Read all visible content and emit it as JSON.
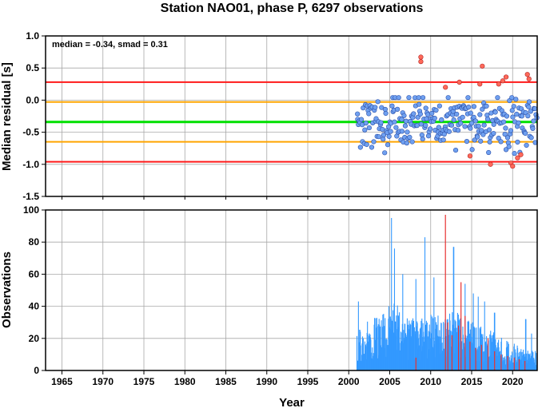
{
  "title": "Station NAO01, phase P, 6297 observations",
  "xlabel": "Year",
  "colors": {
    "median_line": "#00e000",
    "smad_line": "#ffa500",
    "limit_line": "#ff1a1a",
    "point_in": "#6fa0f0",
    "point_out": "#ff6a5a",
    "bar_main": "#3399ff",
    "bar_out": "#e83030",
    "grid": "#a8a8a8"
  },
  "chart_data": [
    {
      "type": "scatter",
      "ylabel": "Median residual [s]",
      "annotation": "median = -0.34, smad = 0.31",
      "xlim": [
        1963,
        2023
      ],
      "ylim": [
        -1.5,
        1.0
      ],
      "yticks": [
        "1.0",
        "0.5",
        "0.0",
        "-0.5",
        "-1.0",
        "-1.5"
      ],
      "ytick_values": [
        1.0,
        0.5,
        0.0,
        -0.5,
        -1.0,
        -1.5
      ],
      "grid": true,
      "hlines": [
        {
          "y": 0.28,
          "kind": "limit"
        },
        {
          "y": -0.03,
          "kind": "smad"
        },
        {
          "y": -0.34,
          "kind": "median"
        },
        {
          "y": -0.65,
          "kind": "smad"
        },
        {
          "y": -0.96,
          "kind": "limit"
        }
      ],
      "points_start": 2001.0,
      "points_end": 2023.0,
      "point_count": 265,
      "cluster": {
        "center": -0.34,
        "spread": 0.42,
        "min": -0.83,
        "max": 0.04
      },
      "outliers": [
        {
          "x": 2008.8,
          "y": 0.67
        },
        {
          "x": 2008.8,
          "y": 0.6
        },
        {
          "x": 2011.8,
          "y": 0.2
        },
        {
          "x": 2013.5,
          "y": 0.28
        },
        {
          "x": 2014.8,
          "y": -0.87
        },
        {
          "x": 2016.3,
          "y": 0.53
        },
        {
          "x": 2016.0,
          "y": 0.25
        },
        {
          "x": 2017.3,
          "y": -1.0
        },
        {
          "x": 2018.3,
          "y": 0.25
        },
        {
          "x": 2018.8,
          "y": 0.3
        },
        {
          "x": 2019.2,
          "y": 0.36
        },
        {
          "x": 2019.8,
          "y": -0.98
        },
        {
          "x": 2020.0,
          "y": -1.03
        },
        {
          "x": 2020.6,
          "y": -0.9
        },
        {
          "x": 2021.0,
          "y": -0.85
        },
        {
          "x": 2021.8,
          "y": 0.4
        },
        {
          "x": 2022.0,
          "y": 0.33
        }
      ]
    },
    {
      "type": "bar",
      "ylabel": "Observations",
      "xlabel": "Year",
      "xlim": [
        1963,
        2023
      ],
      "ylim": [
        0,
        100
      ],
      "yticks": [
        "100",
        "80",
        "60",
        "40",
        "20",
        "0"
      ],
      "ytick_values": [
        100,
        80,
        60,
        40,
        20,
        0
      ],
      "xticks": [
        "1965",
        "1970",
        "1975",
        "1980",
        "1985",
        "1990",
        "1995",
        "2000",
        "2005",
        "2010",
        "2015",
        "2020"
      ],
      "xtick_values": [
        1965,
        1970,
        1975,
        1980,
        1985,
        1990,
        1995,
        2000,
        2005,
        2010,
        2015,
        2020
      ],
      "grid": true,
      "bars_start": 2001.0,
      "bars_end": 2023.0,
      "bar_count": 480,
      "level_profile": [
        {
          "x": 2001.0,
          "v": 18
        },
        {
          "x": 2002.5,
          "v": 24
        },
        {
          "x": 2004.0,
          "v": 26
        },
        {
          "x": 2005.5,
          "v": 34
        },
        {
          "x": 2007.0,
          "v": 27
        },
        {
          "x": 2008.5,
          "v": 24
        },
        {
          "x": 2010.0,
          "v": 26
        },
        {
          "x": 2011.5,
          "v": 25
        },
        {
          "x": 2013.0,
          "v": 28
        },
        {
          "x": 2014.5,
          "v": 24
        },
        {
          "x": 2016.0,
          "v": 21
        },
        {
          "x": 2017.5,
          "v": 18
        },
        {
          "x": 2019.0,
          "v": 15
        },
        {
          "x": 2020.5,
          "v": 12
        },
        {
          "x": 2022.0,
          "v": 10
        },
        {
          "x": 2023.0,
          "v": 9
        }
      ],
      "peaks": [
        {
          "x": 2001.2,
          "v": 43
        },
        {
          "x": 2005.2,
          "v": 95
        },
        {
          "x": 2005.6,
          "v": 76
        },
        {
          "x": 2006.6,
          "v": 60
        },
        {
          "x": 2008.2,
          "v": 57
        },
        {
          "x": 2009.3,
          "v": 83
        },
        {
          "x": 2010.4,
          "v": 58
        },
        {
          "x": 2012.8,
          "v": 77
        },
        {
          "x": 2014.2,
          "v": 54
        },
        {
          "x": 2015.2,
          "v": 48
        },
        {
          "x": 2015.8,
          "v": 46
        },
        {
          "x": 2016.6,
          "v": 43
        },
        {
          "x": 2017.8,
          "v": 36
        },
        {
          "x": 2021.6,
          "v": 32
        },
        {
          "x": 2022.3,
          "v": 23
        }
      ],
      "red_bars": [
        {
          "x": 2008.2,
          "v": 8
        },
        {
          "x": 2011.8,
          "v": 97
        },
        {
          "x": 2012.1,
          "v": 30
        },
        {
          "x": 2012.6,
          "v": 22
        },
        {
          "x": 2013.4,
          "v": 28
        },
        {
          "x": 2013.7,
          "v": 55
        },
        {
          "x": 2014.2,
          "v": 34
        },
        {
          "x": 2014.8,
          "v": 18
        },
        {
          "x": 2015.5,
          "v": 14
        },
        {
          "x": 2016.2,
          "v": 16
        },
        {
          "x": 2017.0,
          "v": 20
        },
        {
          "x": 2017.8,
          "v": 12
        },
        {
          "x": 2018.6,
          "v": 10
        },
        {
          "x": 2019.4,
          "v": 9
        },
        {
          "x": 2020.2,
          "v": 8
        },
        {
          "x": 2020.8,
          "v": 7
        },
        {
          "x": 2021.5,
          "v": 6
        }
      ]
    }
  ]
}
